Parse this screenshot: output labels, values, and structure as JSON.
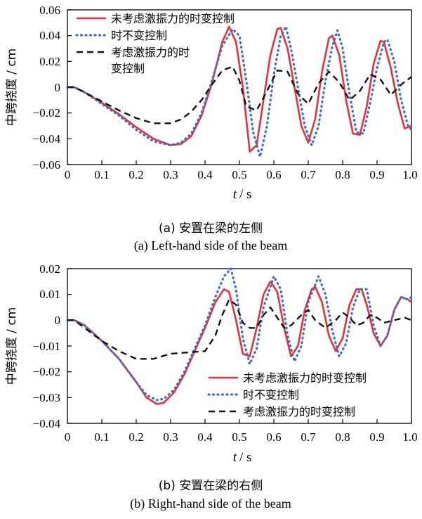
{
  "colors": {
    "series_red": "#e8303a",
    "series_blue": "#3f6fc3",
    "series_black": "#111111"
  },
  "chart_data": [
    {
      "type": "line",
      "ylabel": "中跨挠度 / cm",
      "xlabel_var": "t",
      "xlabel_unit": "/ s",
      "xlim": [
        0,
        1.0
      ],
      "ylim": [
        -0.06,
        0.06
      ],
      "xticks": [
        "0",
        "0.1",
        "0.2",
        "0.3",
        "0.4",
        "0.5",
        "0.6",
        "0.7",
        "0.8",
        "0.9",
        "1.0"
      ],
      "yticks": [
        "0.06",
        "0.04",
        "0.02",
        "0",
        "−0.02",
        "−0.04",
        "−0.06"
      ],
      "ytick_values": [
        0.06,
        0.04,
        0.02,
        0,
        -0.02,
        -0.04,
        -0.06
      ],
      "legend_position": "top-left",
      "caption_cn": "(a)  安置在梁的左侧",
      "caption_en": "(a)  Left-hand side of the beam",
      "series": [
        {
          "name": "未考虑激振力的时变控制",
          "style": "solid",
          "color": "#e8303a",
          "x": [
            0,
            0.02,
            0.05,
            0.1,
            0.15,
            0.2,
            0.25,
            0.3,
            0.33,
            0.36,
            0.39,
            0.42,
            0.45,
            0.47,
            0.49,
            0.51,
            0.53,
            0.55,
            0.57,
            0.59,
            0.61,
            0.62,
            0.64,
            0.66,
            0.68,
            0.7,
            0.72,
            0.74,
            0.76,
            0.77,
            0.79,
            0.81,
            0.83,
            0.85,
            0.87,
            0.89,
            0.91,
            0.92,
            0.94,
            0.96,
            0.98,
            1.0
          ],
          "y": [
            0,
            0,
            -0.004,
            -0.012,
            -0.021,
            -0.031,
            -0.04,
            -0.045,
            -0.044,
            -0.038,
            -0.022,
            0.003,
            0.035,
            0.047,
            0.035,
            0.0,
            -0.05,
            -0.045,
            -0.01,
            0.025,
            0.045,
            0.046,
            0.03,
            0.0,
            -0.03,
            -0.043,
            -0.025,
            0.012,
            0.038,
            0.04,
            0.025,
            -0.01,
            -0.036,
            -0.037,
            -0.015,
            0.018,
            0.036,
            0.035,
            0.015,
            -0.012,
            -0.032,
            -0.03
          ]
        },
        {
          "name": "时不变控制",
          "style": "dotted",
          "color": "#3f6fc3",
          "x": [
            0,
            0.02,
            0.05,
            0.1,
            0.15,
            0.2,
            0.25,
            0.3,
            0.33,
            0.36,
            0.39,
            0.42,
            0.45,
            0.48,
            0.5,
            0.52,
            0.54,
            0.56,
            0.58,
            0.6,
            0.62,
            0.635,
            0.65,
            0.67,
            0.69,
            0.71,
            0.73,
            0.75,
            0.77,
            0.785,
            0.8,
            0.82,
            0.84,
            0.86,
            0.88,
            0.9,
            0.92,
            0.93,
            0.95,
            0.97,
            0.99,
            1.0
          ],
          "y": [
            0,
            0,
            -0.004,
            -0.013,
            -0.022,
            -0.033,
            -0.042,
            -0.045,
            -0.043,
            -0.036,
            -0.02,
            0.005,
            0.032,
            0.045,
            0.04,
            0.005,
            -0.035,
            -0.054,
            -0.03,
            0.01,
            0.04,
            0.047,
            0.03,
            0.0,
            -0.03,
            -0.045,
            -0.03,
            0.005,
            0.032,
            0.044,
            0.03,
            -0.005,
            -0.035,
            -0.036,
            -0.012,
            0.015,
            0.035,
            0.037,
            0.02,
            -0.01,
            -0.03,
            -0.033
          ]
        },
        {
          "name": "考虑激振力的时变控制",
          "style": "dashed",
          "color": "#111111",
          "x": [
            0,
            0.02,
            0.05,
            0.1,
            0.15,
            0.2,
            0.25,
            0.3,
            0.33,
            0.36,
            0.39,
            0.42,
            0.45,
            0.48,
            0.5,
            0.52,
            0.55,
            0.58,
            0.61,
            0.64,
            0.67,
            0.7,
            0.73,
            0.76,
            0.79,
            0.82,
            0.85,
            0.88,
            0.91,
            0.94,
            0.97,
            1.0
          ],
          "y": [
            0,
            0,
            -0.004,
            -0.011,
            -0.018,
            -0.024,
            -0.028,
            -0.028,
            -0.025,
            -0.019,
            -0.01,
            0.002,
            0.013,
            0.016,
            0.005,
            -0.015,
            -0.018,
            -0.003,
            0.013,
            0.012,
            -0.005,
            -0.013,
            0.003,
            0.012,
            0.004,
            -0.01,
            -0.003,
            0.01,
            0.006,
            -0.006,
            0.002,
            0.008
          ]
        }
      ]
    },
    {
      "type": "line",
      "ylabel": "中跨挠度 / cm",
      "xlabel_var": "t",
      "xlabel_unit": "/ s",
      "xlim": [
        0,
        1.0
      ],
      "ylim": [
        -0.04,
        0.02
      ],
      "xticks": [
        "0",
        "0.1",
        "0.2",
        "0.3",
        "0.4",
        "0.5",
        "0.6",
        "0.7",
        "0.8",
        "0.9",
        "1.0"
      ],
      "yticks": [
        "0.02",
        "0.01",
        "0",
        "−0.01",
        "−0.02",
        "−0.03",
        "−0.04"
      ],
      "ytick_values": [
        0.02,
        0.01,
        0,
        -0.01,
        -0.02,
        -0.03,
        -0.04
      ],
      "legend_position": "bottom-right",
      "caption_cn": "(b)  安置在梁的右侧",
      "caption_en": "(b)  Right-hand side of the beam",
      "series": [
        {
          "name": "未考虑激振力的时变控制",
          "style": "solid",
          "color": "#e8303a",
          "x": [
            0,
            0.02,
            0.05,
            0.1,
            0.15,
            0.2,
            0.23,
            0.26,
            0.28,
            0.31,
            0.34,
            0.37,
            0.4,
            0.43,
            0.455,
            0.47,
            0.49,
            0.51,
            0.53,
            0.55,
            0.57,
            0.59,
            0.61,
            0.63,
            0.65,
            0.67,
            0.69,
            0.71,
            0.72,
            0.74,
            0.76,
            0.78,
            0.8,
            0.82,
            0.84,
            0.855,
            0.87,
            0.89,
            0.91,
            0.93,
            0.95,
            0.97,
            0.99,
            1.0
          ],
          "y": [
            0,
            0,
            -0.002,
            -0.008,
            -0.015,
            -0.024,
            -0.03,
            -0.0325,
            -0.032,
            -0.028,
            -0.021,
            -0.012,
            -0.003,
            0.007,
            0.012,
            0.011,
            0.0,
            -0.013,
            -0.014,
            -0.003,
            0.01,
            0.015,
            0.011,
            -0.003,
            -0.014,
            -0.01,
            0.004,
            0.012,
            0.013,
            0.007,
            -0.006,
            -0.012,
            -0.007,
            0.006,
            0.012,
            0.012,
            0.006,
            -0.005,
            -0.01,
            -0.006,
            0.004,
            0.009,
            0.008,
            0.007
          ]
        },
        {
          "name": "时不变控制",
          "style": "dotted",
          "color": "#3f6fc3",
          "x": [
            0,
            0.02,
            0.05,
            0.1,
            0.15,
            0.2,
            0.23,
            0.26,
            0.28,
            0.31,
            0.34,
            0.37,
            0.4,
            0.43,
            0.455,
            0.475,
            0.49,
            0.51,
            0.53,
            0.55,
            0.57,
            0.6,
            0.62,
            0.64,
            0.66,
            0.68,
            0.7,
            0.73,
            0.75,
            0.77,
            0.79,
            0.81,
            0.83,
            0.85,
            0.87,
            0.89,
            0.91,
            0.93,
            0.95,
            0.97,
            0.99,
            1.0
          ],
          "y": [
            0,
            0,
            -0.002,
            -0.008,
            -0.015,
            -0.024,
            -0.029,
            -0.031,
            -0.0305,
            -0.027,
            -0.02,
            -0.011,
            -0.002,
            0.009,
            0.017,
            0.02,
            0.012,
            -0.007,
            -0.017,
            -0.011,
            0.005,
            0.017,
            0.012,
            -0.006,
            -0.016,
            -0.01,
            0.007,
            0.017,
            0.01,
            -0.004,
            -0.014,
            -0.009,
            0.005,
            0.012,
            0.012,
            -0.002,
            -0.01,
            -0.006,
            0.004,
            0.009,
            0.008,
            0.009
          ]
        },
        {
          "name": "考虑激振力的时变控制",
          "style": "dashed",
          "color": "#111111",
          "x": [
            0,
            0.02,
            0.05,
            0.1,
            0.15,
            0.2,
            0.25,
            0.3,
            0.35,
            0.4,
            0.43,
            0.45,
            0.47,
            0.49,
            0.51,
            0.53,
            0.55,
            0.57,
            0.59,
            0.61,
            0.63,
            0.65,
            0.68,
            0.7,
            0.72,
            0.75,
            0.78,
            0.8,
            0.82,
            0.84,
            0.86,
            0.88,
            0.9,
            0.92,
            0.95,
            0.98,
            1.0
          ],
          "y": [
            0,
            0,
            -0.003,
            -0.008,
            -0.012,
            -0.015,
            -0.015,
            -0.013,
            -0.0125,
            -0.012,
            -0.006,
            0.002,
            0.008,
            0.006,
            -0.001,
            -0.003,
            -0.003,
            0.002,
            0.005,
            0.001,
            -0.003,
            -0.002,
            0.002,
            0.004,
            0.0,
            -0.003,
            0.0,
            0.003,
            0.001,
            -0.002,
            -0.001,
            0.002,
            0.001,
            -0.001,
            0.0,
            0.001,
            0.0
          ]
        }
      ]
    }
  ]
}
